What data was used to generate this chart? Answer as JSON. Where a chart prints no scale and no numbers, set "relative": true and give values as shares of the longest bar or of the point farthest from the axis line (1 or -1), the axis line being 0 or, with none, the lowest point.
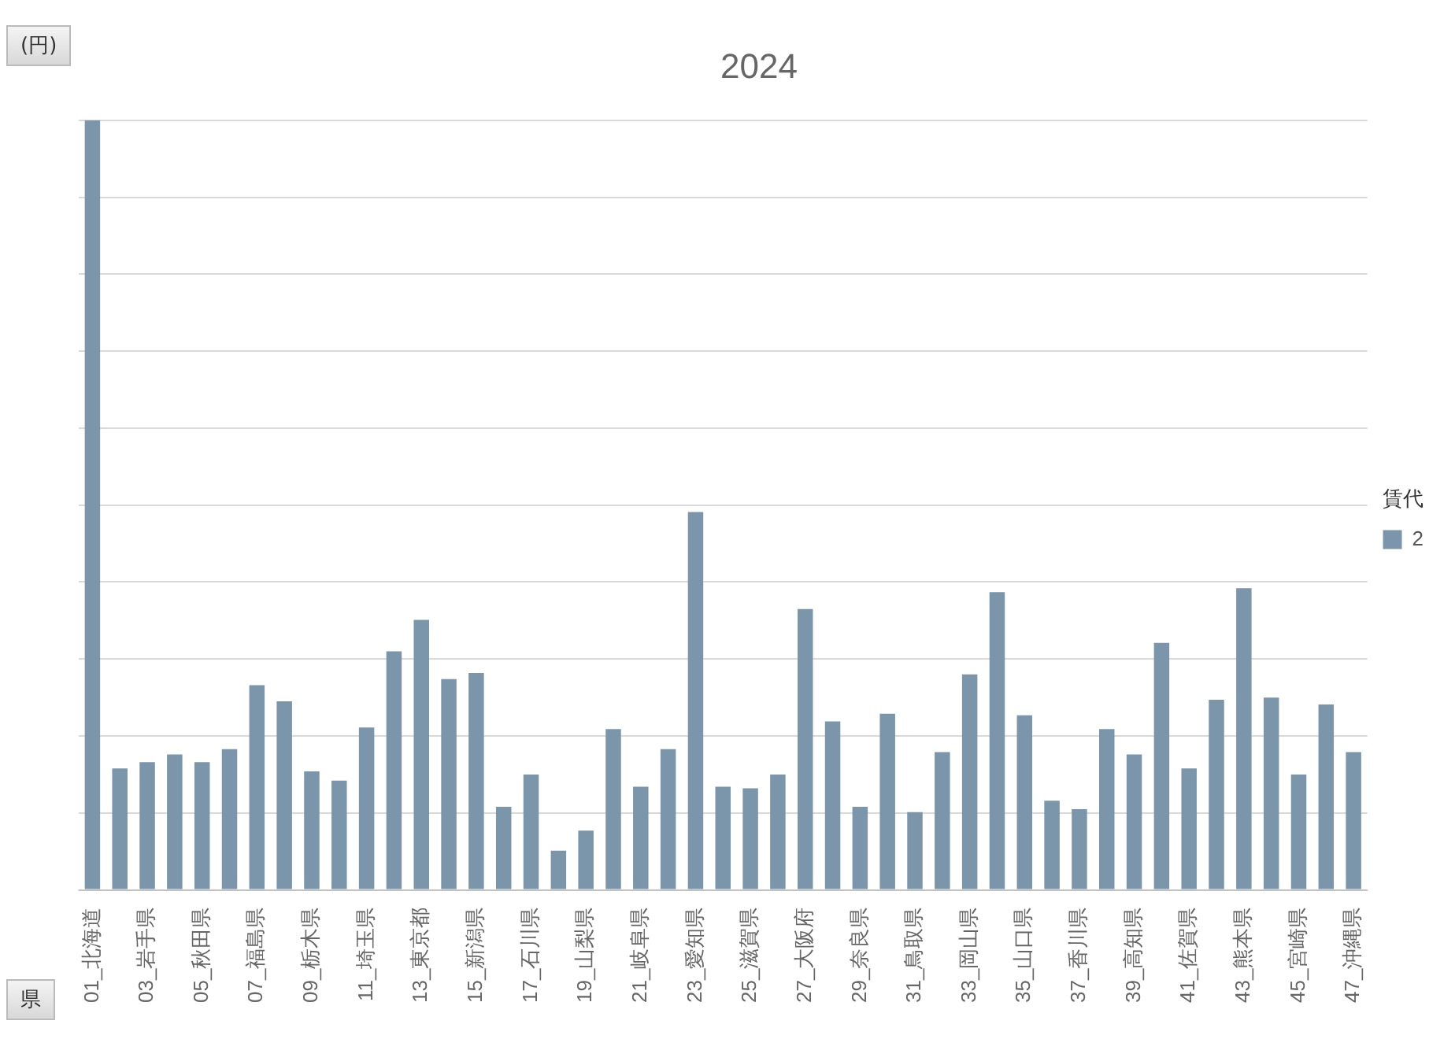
{
  "chart_data": {
    "type": "bar",
    "title": "2024",
    "relative": true,
    "grid": "y",
    "legend": "right",
    "legend_title": "賃代",
    "annotations": [
      "(円)",
      "県"
    ],
    "categories": [
      "01_北海道",
      null,
      "03_岩手県",
      null,
      "05_秋田県",
      null,
      "07_福島県",
      null,
      "09_栃木県",
      null,
      "11_埼玉県",
      null,
      "13_東京都",
      null,
      "15_新潟県",
      null,
      "17_石川県",
      null,
      "19_山梨県",
      null,
      "21_岐阜県",
      null,
      "23_愛知県",
      null,
      "25_滋賀県",
      null,
      "27_大阪府",
      null,
      "29_奈良県",
      null,
      "31_鳥取県",
      null,
      "33_岡山県",
      null,
      "35_山口県",
      null,
      "37_香川県",
      null,
      "39_高知県",
      null,
      "41_佐賀県",
      null,
      "43_熊本県",
      null,
      "45_宮崎県",
      null,
      "47_沖縄県"
    ],
    "series": [
      {
        "name": "2",
        "color": "#7b96ab",
        "values": [
          1,
          0.158,
          0.166,
          0.176,
          0.166,
          0.183,
          0.266,
          0.245,
          0.154,
          0.142,
          0.211,
          0.31,
          0.351,
          0.274,
          0.282,
          0.108,
          0.15,
          0.051,
          0.077,
          0.209,
          0.134,
          0.183,
          0.491,
          0.134,
          0.132,
          0.15,
          0.365,
          0.219,
          0.108,
          0.229,
          0.101,
          0.179,
          0.28,
          0.387,
          0.227,
          0.116,
          0.105,
          0.209,
          0.176,
          0.321,
          0.158,
          0.247,
          0.392,
          0.25,
          0.15,
          0.241,
          0.179
        ]
      }
    ]
  }
}
